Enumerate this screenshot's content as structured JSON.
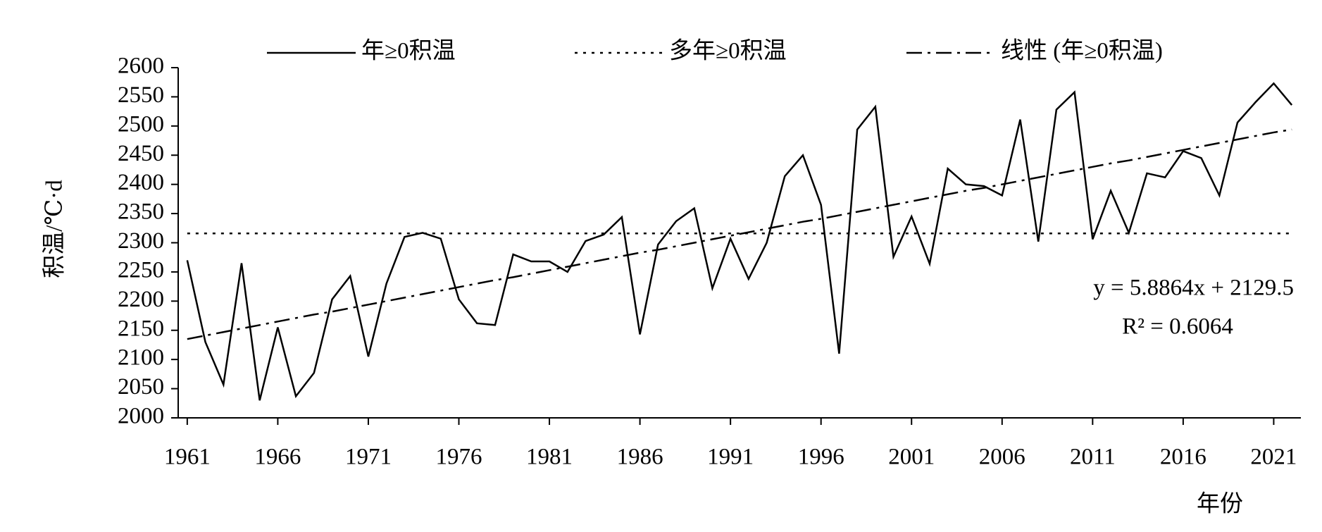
{
  "chart_data": {
    "type": "line",
    "y_label": "积温/℃·d",
    "x_label": "年份",
    "x": [
      1961,
      1962,
      1963,
      1964,
      1965,
      1966,
      1967,
      1968,
      1969,
      1970,
      1971,
      1972,
      1973,
      1974,
      1975,
      1976,
      1977,
      1978,
      1979,
      1980,
      1981,
      1982,
      1983,
      1984,
      1985,
      1986,
      1987,
      1988,
      1989,
      1990,
      1991,
      1992,
      1993,
      1994,
      1995,
      1996,
      1997,
      1998,
      1999,
      2000,
      2001,
      2002,
      2003,
      2004,
      2005,
      2006,
      2007,
      2008,
      2009,
      2010,
      2011,
      2012,
      2013,
      2014,
      2015,
      2016,
      2017,
      2018,
      2019,
      2020,
      2021,
      2022
    ],
    "series": [
      {
        "name": "年≥0积温",
        "color": "#000000",
        "dash": "solid",
        "values": [
          2270,
          2130,
          2057,
          2265,
          2030,
          2155,
          2037,
          2077,
          2203,
          2243,
          2105,
          2230,
          2310,
          2317,
          2307,
          2203,
          2162,
          2159,
          2280,
          2268,
          2268,
          2250,
          2303,
          2314,
          2344,
          2143,
          2297,
          2337,
          2359,
          2222,
          2307,
          2238,
          2300,
          2414,
          2450,
          2365,
          2110,
          2494,
          2533,
          2276,
          2345,
          2264,
          2427,
          2400,
          2397,
          2381,
          2511,
          2302,
          2528,
          2558,
          2306,
          2389,
          2317,
          2419,
          2412,
          2457,
          2445,
          2381,
          2506,
          2541,
          2573,
          2536
        ]
      },
      {
        "name": "多年≥0积温",
        "color": "#000000",
        "dash": "dotted",
        "values": [
          2316,
          2316,
          2316,
          2316,
          2316,
          2316,
          2316,
          2316,
          2316,
          2316,
          2316,
          2316,
          2316,
          2316,
          2316,
          2316,
          2316,
          2316,
          2316,
          2316,
          2316,
          2316,
          2316,
          2316,
          2316,
          2316,
          2316,
          2316,
          2316,
          2316,
          2316,
          2316,
          2316,
          2316,
          2316,
          2316,
          2316,
          2316,
          2316,
          2316,
          2316,
          2316,
          2316,
          2316,
          2316,
          2316,
          2316,
          2316,
          2316,
          2316,
          2316,
          2316,
          2316,
          2316,
          2316,
          2316,
          2316,
          2316,
          2316,
          2316,
          2316,
          2316
        ]
      },
      {
        "name": "线性 (年≥0积温)",
        "color": "#000000",
        "dash": "dashdot",
        "values": [
          2135,
          2141,
          2147,
          2153,
          2159,
          2165,
          2171,
          2177,
          2182,
          2188,
          2194,
          2200,
          2206,
          2212,
          2218,
          2224,
          2230,
          2236,
          2241,
          2247,
          2253,
          2259,
          2265,
          2271,
          2277,
          2283,
          2288,
          2294,
          2300,
          2306,
          2312,
          2318,
          2324,
          2330,
          2336,
          2341,
          2347,
          2353,
          2359,
          2365,
          2371,
          2377,
          2383,
          2389,
          2394,
          2400,
          2406,
          2412,
          2418,
          2424,
          2430,
          2436,
          2441,
          2447,
          2453,
          2459,
          2465,
          2471,
          2477,
          2483,
          2489,
          2494
        ]
      }
    ],
    "annotations": [
      "y = 5.8864x + 2129.5",
      "R² = 0.6064"
    ],
    "xlim": [
      1960.5,
      2022.5
    ],
    "xticks": [
      1961,
      1966,
      1971,
      1976,
      1981,
      1986,
      1991,
      1996,
      2001,
      2006,
      2011,
      2016,
      2021
    ],
    "ylim": [
      2000,
      2600
    ],
    "yticks": [
      2000,
      2050,
      2100,
      2150,
      2200,
      2250,
      2300,
      2350,
      2400,
      2450,
      2500,
      2550,
      2600
    ],
    "legend": "top"
  }
}
